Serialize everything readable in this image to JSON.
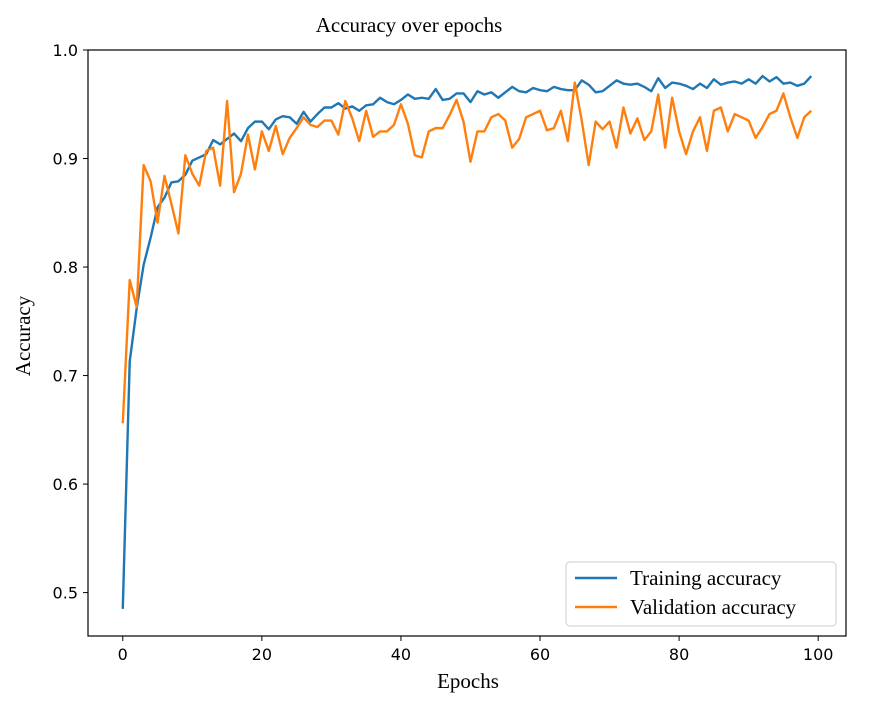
{
  "chart_data": {
    "type": "line",
    "title": "Accuracy over epochs",
    "xlabel": "Epochs",
    "ylabel": "Accuracy",
    "xlim": [
      -5,
      104
    ],
    "ylim": [
      0.46,
      1.0
    ],
    "xticks": [
      0,
      20,
      40,
      60,
      80,
      100
    ],
    "xtick_labels": [
      "0",
      "20",
      "40",
      "60",
      "80",
      "100"
    ],
    "yticks": [
      0.5,
      0.6,
      0.7,
      0.8,
      0.9,
      1.0
    ],
    "ytick_labels": [
      "0.5",
      "0.6",
      "0.7",
      "0.8",
      "0.9",
      "1.0"
    ],
    "grid": false,
    "legend_position": "lower-right",
    "series": [
      {
        "name": "Training accuracy",
        "color": "#1f77b4",
        "x": [
          0,
          1,
          2,
          3,
          4,
          5,
          6,
          7,
          8,
          9,
          10,
          11,
          12,
          13,
          14,
          15,
          16,
          17,
          18,
          19,
          20,
          21,
          22,
          23,
          24,
          25,
          26,
          27,
          28,
          29,
          30,
          31,
          32,
          33,
          34,
          35,
          36,
          37,
          38,
          39,
          40,
          41,
          42,
          43,
          44,
          45,
          46,
          47,
          48,
          49,
          50,
          51,
          52,
          53,
          54,
          55,
          56,
          57,
          58,
          59,
          60,
          61,
          62,
          63,
          64,
          65,
          66,
          67,
          68,
          69,
          70,
          71,
          72,
          73,
          74,
          75,
          76,
          77,
          78,
          79,
          80,
          81,
          82,
          83,
          84,
          85,
          86,
          87,
          88,
          89,
          90,
          91,
          92,
          93,
          94,
          95,
          96,
          97,
          98,
          99
        ],
        "values": [
          0.485,
          0.713,
          0.762,
          0.802,
          0.827,
          0.855,
          0.864,
          0.878,
          0.879,
          0.885,
          0.898,
          0.901,
          0.904,
          0.917,
          0.913,
          0.918,
          0.923,
          0.916,
          0.928,
          0.934,
          0.934,
          0.927,
          0.936,
          0.939,
          0.938,
          0.932,
          0.943,
          0.934,
          0.941,
          0.947,
          0.947,
          0.951,
          0.946,
          0.948,
          0.944,
          0.949,
          0.95,
          0.956,
          0.952,
          0.95,
          0.954,
          0.959,
          0.955,
          0.956,
          0.955,
          0.964,
          0.954,
          0.955,
          0.96,
          0.96,
          0.952,
          0.962,
          0.959,
          0.961,
          0.956,
          0.961,
          0.966,
          0.962,
          0.961,
          0.965,
          0.963,
          0.962,
          0.966,
          0.964,
          0.963,
          0.963,
          0.972,
          0.968,
          0.961,
          0.962,
          0.967,
          0.972,
          0.969,
          0.968,
          0.969,
          0.966,
          0.962,
          0.974,
          0.965,
          0.97,
          0.969,
          0.967,
          0.964,
          0.969,
          0.965,
          0.973,
          0.968,
          0.97,
          0.971,
          0.969,
          0.973,
          0.969,
          0.976,
          0.971,
          0.975,
          0.969,
          0.97,
          0.967,
          0.969,
          0.976
        ]
      },
      {
        "name": "Validation accuracy",
        "color": "#ff7f0e",
        "x": [
          0,
          1,
          2,
          3,
          4,
          5,
          6,
          7,
          8,
          9,
          10,
          11,
          12,
          13,
          14,
          15,
          16,
          17,
          18,
          19,
          20,
          21,
          22,
          23,
          24,
          25,
          26,
          27,
          28,
          29,
          30,
          31,
          32,
          33,
          34,
          35,
          36,
          37,
          38,
          39,
          40,
          41,
          42,
          43,
          44,
          45,
          46,
          47,
          48,
          49,
          50,
          51,
          52,
          53,
          54,
          55,
          56,
          57,
          58,
          59,
          60,
          61,
          62,
          63,
          64,
          65,
          66,
          67,
          68,
          69,
          70,
          71,
          72,
          73,
          74,
          75,
          76,
          77,
          78,
          79,
          80,
          81,
          82,
          83,
          84,
          85,
          86,
          87,
          88,
          89,
          90,
          91,
          92,
          93,
          94,
          95,
          96,
          97,
          98,
          99
        ],
        "values": [
          0.656,
          0.788,
          0.763,
          0.894,
          0.879,
          0.841,
          0.884,
          0.858,
          0.831,
          0.903,
          0.886,
          0.875,
          0.907,
          0.91,
          0.875,
          0.953,
          0.869,
          0.886,
          0.922,
          0.89,
          0.925,
          0.907,
          0.93,
          0.904,
          0.919,
          0.928,
          0.938,
          0.931,
          0.929,
          0.935,
          0.935,
          0.922,
          0.953,
          0.937,
          0.916,
          0.944,
          0.92,
          0.925,
          0.925,
          0.931,
          0.95,
          0.932,
          0.903,
          0.901,
          0.925,
          0.928,
          0.928,
          0.94,
          0.954,
          0.934,
          0.897,
          0.925,
          0.925,
          0.938,
          0.941,
          0.935,
          0.91,
          0.918,
          0.938,
          0.941,
          0.944,
          0.926,
          0.928,
          0.944,
          0.916,
          0.97,
          0.935,
          0.894,
          0.934,
          0.927,
          0.934,
          0.91,
          0.947,
          0.923,
          0.937,
          0.917,
          0.925,
          0.959,
          0.91,
          0.956,
          0.925,
          0.904,
          0.925,
          0.938,
          0.907,
          0.944,
          0.947,
          0.925,
          0.941,
          0.938,
          0.935,
          0.919,
          0.929,
          0.941,
          0.944,
          0.96,
          0.938,
          0.919,
          0.938,
          0.944
        ]
      }
    ]
  }
}
